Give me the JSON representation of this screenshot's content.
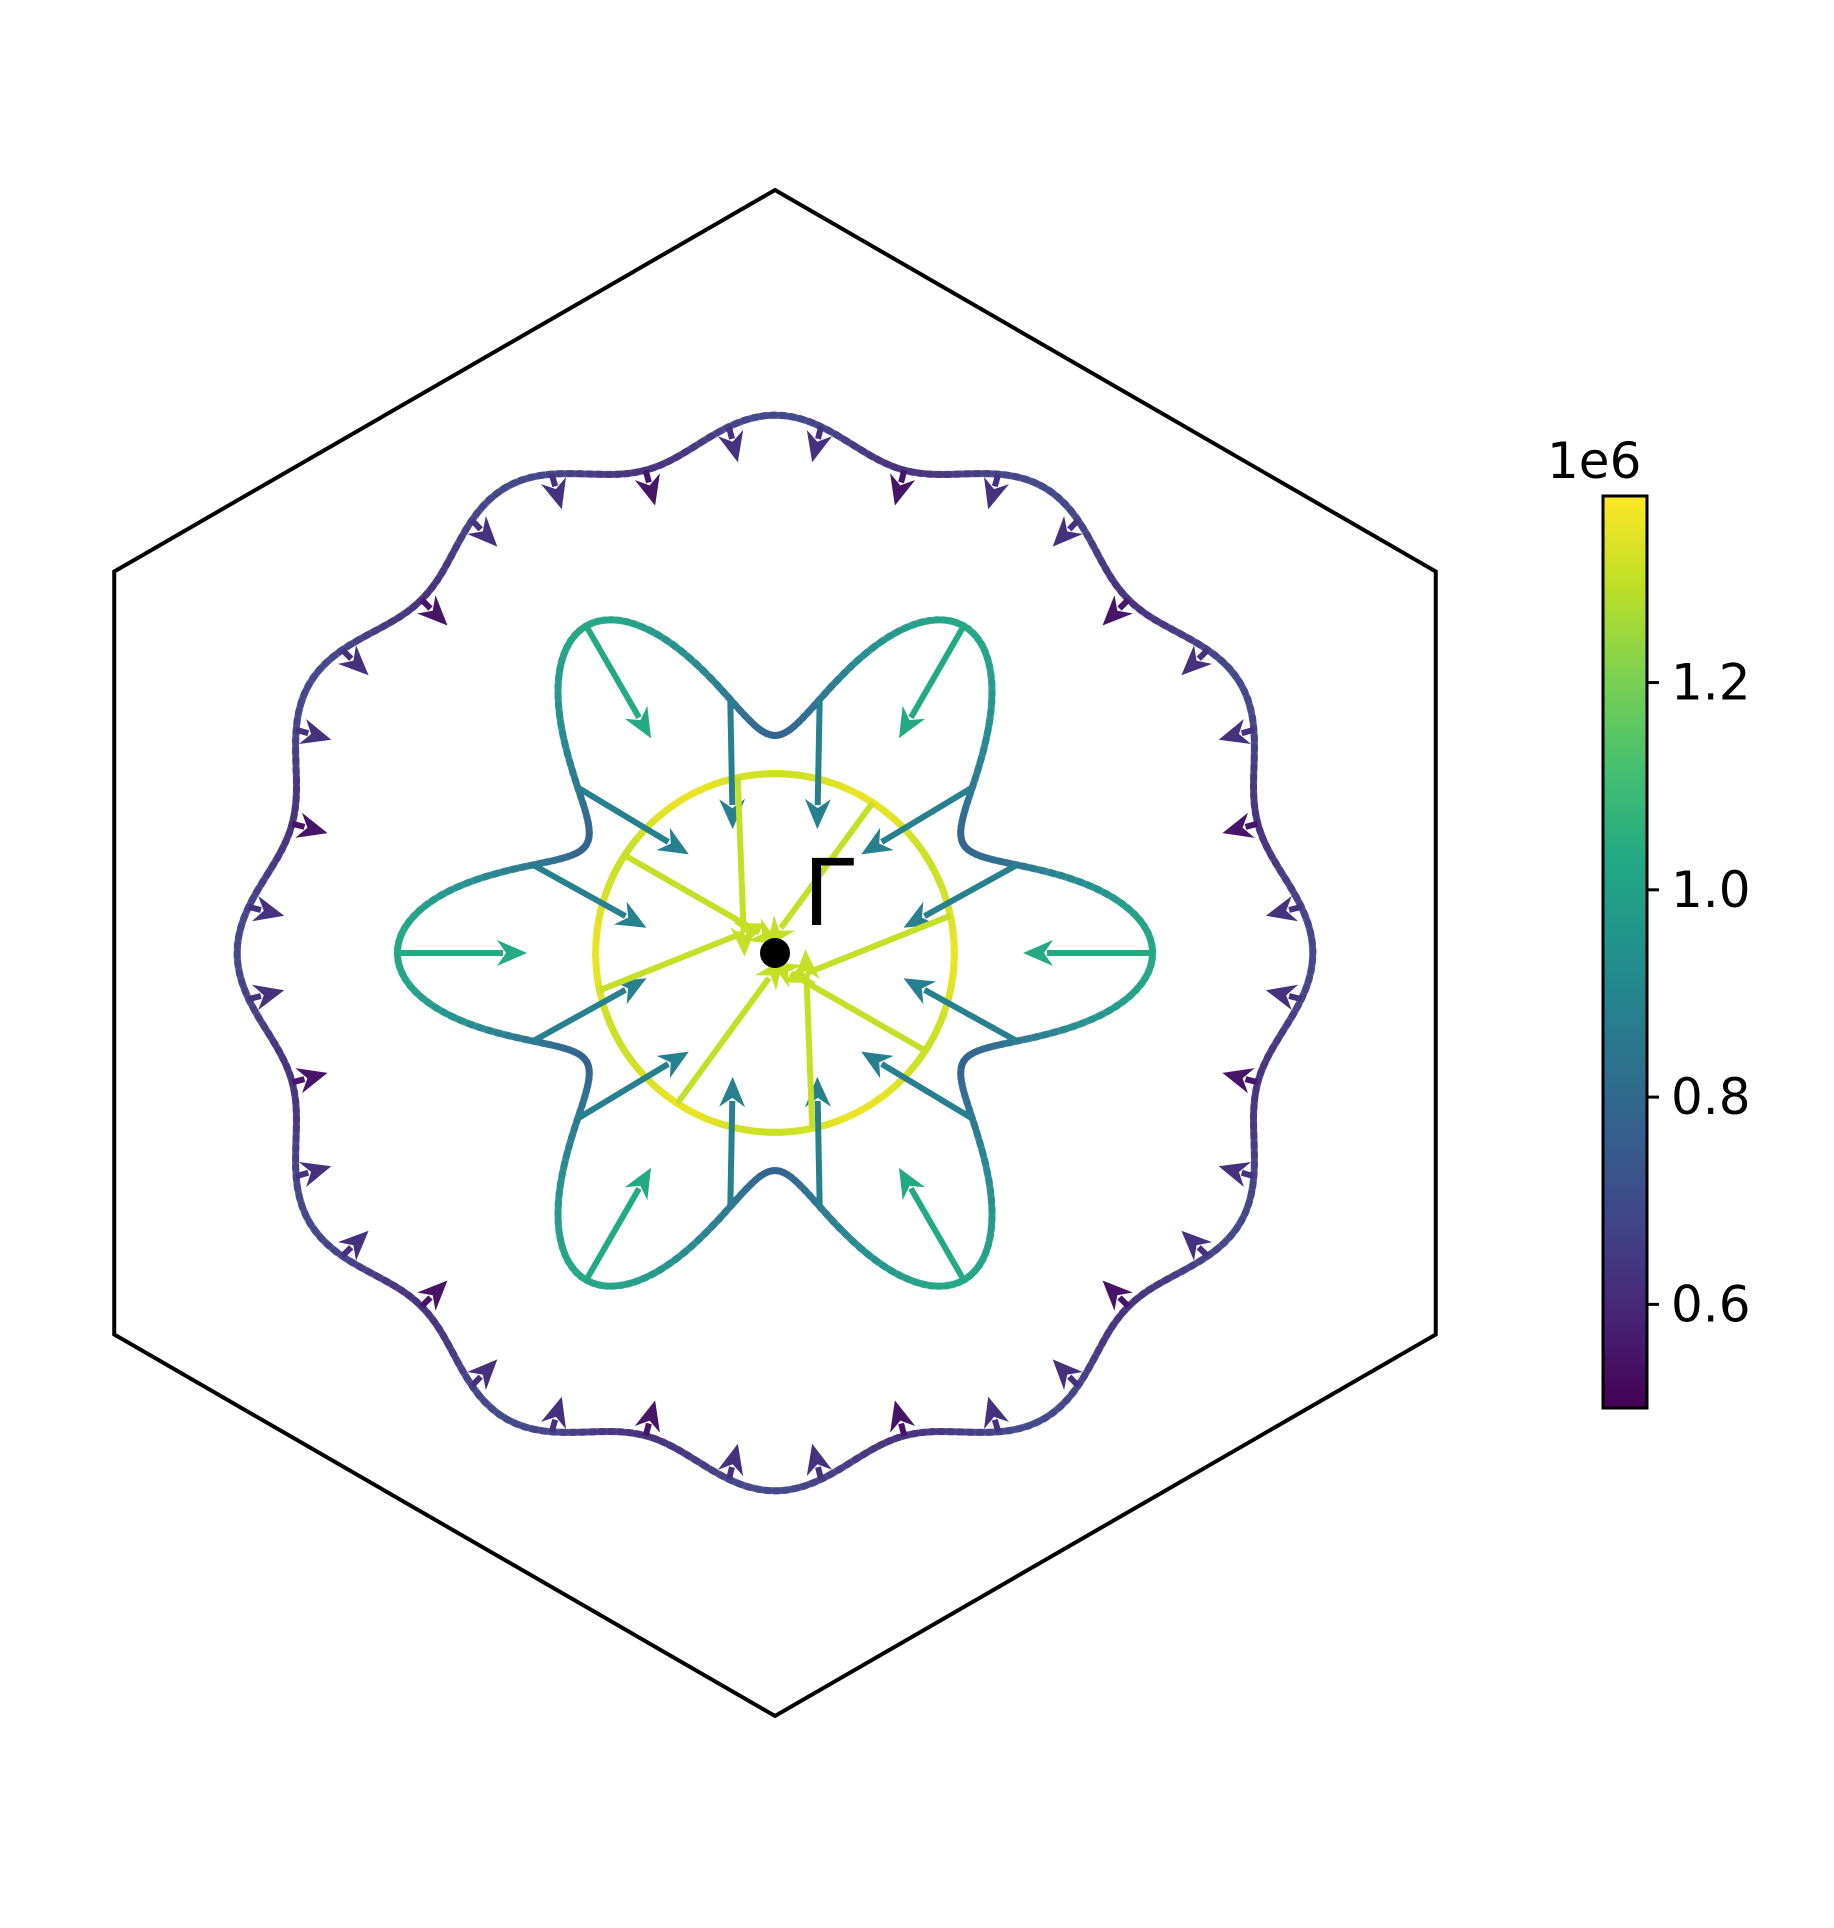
{
  "chart_data": {
    "type": "quiver-contour",
    "title": "",
    "xlabel": "",
    "ylabel": "",
    "point_label": "Γ",
    "colorbar": {
      "multiplier": "1e6",
      "ticks": [
        0.6,
        0.8,
        1.0,
        1.2
      ],
      "tick_labels": [
        "0.6",
        "0.8",
        "1.0",
        "1.2"
      ],
      "range": [
        0.5,
        1.38
      ],
      "colormap": "viridis"
    },
    "boundary": {
      "shape": "hexagon",
      "vertices": [
        [
          0,
          1
        ],
        [
          0.866,
          0.5
        ],
        [
          0.866,
          -0.5
        ],
        [
          0,
          -1
        ],
        [
          -0.866,
          -0.5
        ],
        [
          -0.866,
          0.5
        ]
      ]
    },
    "contours": [
      {
        "name": "outer",
        "mean_radius": 0.68,
        "ripple": 0.025,
        "ripple_order": 12,
        "ripple_phase_deg": 0,
        "value_mean": 0.65,
        "value_ripple": 0.03,
        "arrow_count": 36,
        "arrow_length": 0.048,
        "arrow_angle_offset_deg": 5,
        "arrow_value_mean": 0.6,
        "arrow_value_ripple": 0.05
      },
      {
        "name": "middle",
        "mean_radius": 0.39,
        "ripple": 0.105,
        "ripple_order": 6,
        "ripple_phase_deg": 0,
        "value_mean": 0.9,
        "value_ripple": 0.12,
        "arrow_count": 18,
        "arrow_length": 0.17,
        "arrow_angle_offset_deg": 0,
        "arrow_value_mean": 0.93,
        "arrow_value_ripple": 0.1
      },
      {
        "name": "inner",
        "mean_radius": 0.235,
        "ripple": 0.0,
        "ripple_order": 6,
        "ripple_phase_deg": 0,
        "value_mean": 1.33,
        "value_ripple": 0.02,
        "arrow_count": 8,
        "arrow_length": 0.235,
        "arrow_angle_offset_deg": 12,
        "arrow_value_mean": 1.3,
        "arrow_value_ripple": 0.0
      }
    ]
  }
}
